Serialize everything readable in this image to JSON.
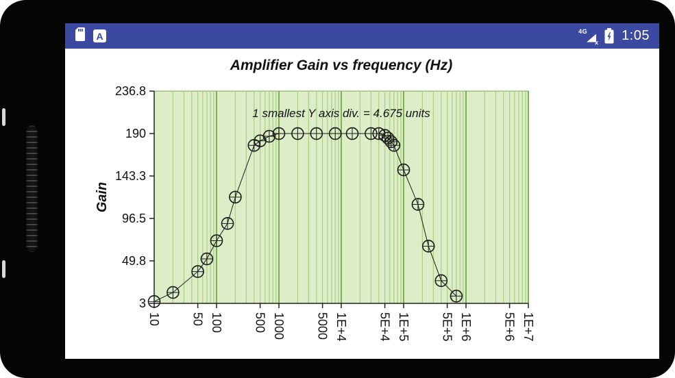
{
  "status_bar": {
    "time": "1:05",
    "network_label": "4G",
    "keyboard_badge": "A"
  },
  "colors": {
    "device_bezel": "#050505",
    "status_bar_bg": "#3b4aa0",
    "screen_bg": "#ffffff"
  },
  "chart_data": {
    "type": "line",
    "title": "Amplifier Gain vs frequency (Hz)",
    "ylabel": "Gain",
    "xlabel_unit": "Hz",
    "annotation": "1 smallest Y axis div. = 4.675 units",
    "x_scale": "log",
    "grid": "vertical-log",
    "legend": "none",
    "marker": "circle-plus",
    "xlim": [
      10,
      10000000
    ],
    "ylim": [
      3,
      236.8
    ],
    "y_ticks": [
      {
        "value": 3,
        "label": "3"
      },
      {
        "value": 49.8,
        "label": "49.8"
      },
      {
        "value": 96.5,
        "label": "96.5"
      },
      {
        "value": 143.3,
        "label": "143.3"
      },
      {
        "value": 190,
        "label": "190"
      },
      {
        "value": 236.8,
        "label": "236.8"
      }
    ],
    "x_ticks": [
      {
        "value": 10,
        "label": "10"
      },
      {
        "value": 50,
        "label": "50"
      },
      {
        "value": 100,
        "label": "100"
      },
      {
        "value": 500,
        "label": "500"
      },
      {
        "value": 1000,
        "label": "1000"
      },
      {
        "value": 5000,
        "label": "5000"
      },
      {
        "value": 10000,
        "label": "1E+4"
      },
      {
        "value": 50000,
        "label": "5E+4"
      },
      {
        "value": 100000,
        "label": "1E+5"
      },
      {
        "value": 500000,
        "label": "5E+5"
      },
      {
        "value": 1000000,
        "label": "1E+6"
      },
      {
        "value": 5000000,
        "label": "5E+6"
      },
      {
        "value": 10000000,
        "label": "1E+7"
      }
    ],
    "points": [
      {
        "x": 10,
        "y": 5
      },
      {
        "x": 20,
        "y": 15
      },
      {
        "x": 50,
        "y": 38
      },
      {
        "x": 70,
        "y": 52
      },
      {
        "x": 100,
        "y": 72
      },
      {
        "x": 150,
        "y": 91
      },
      {
        "x": 200,
        "y": 120
      },
      {
        "x": 400,
        "y": 177
      },
      {
        "x": 500,
        "y": 182
      },
      {
        "x": 700,
        "y": 187
      },
      {
        "x": 1000,
        "y": 190
      },
      {
        "x": 2000,
        "y": 190
      },
      {
        "x": 4000,
        "y": 190
      },
      {
        "x": 8000,
        "y": 190
      },
      {
        "x": 15000,
        "y": 190
      },
      {
        "x": 30000,
        "y": 190
      },
      {
        "x": 40000,
        "y": 190
      },
      {
        "x": 50000,
        "y": 188
      },
      {
        "x": 56000,
        "y": 185
      },
      {
        "x": 63000,
        "y": 181
      },
      {
        "x": 70000,
        "y": 177
      },
      {
        "x": 100000,
        "y": 150
      },
      {
        "x": 170000,
        "y": 112
      },
      {
        "x": 250000,
        "y": 66
      },
      {
        "x": 400000,
        "y": 28
      },
      {
        "x": 700000,
        "y": 11
      }
    ],
    "colors": {
      "plot_bg": "#dcedc8",
      "grid_minor": "#abd284",
      "grid_major": "#74a843",
      "axis": "#222222",
      "series": "#1a1a1a"
    }
  }
}
